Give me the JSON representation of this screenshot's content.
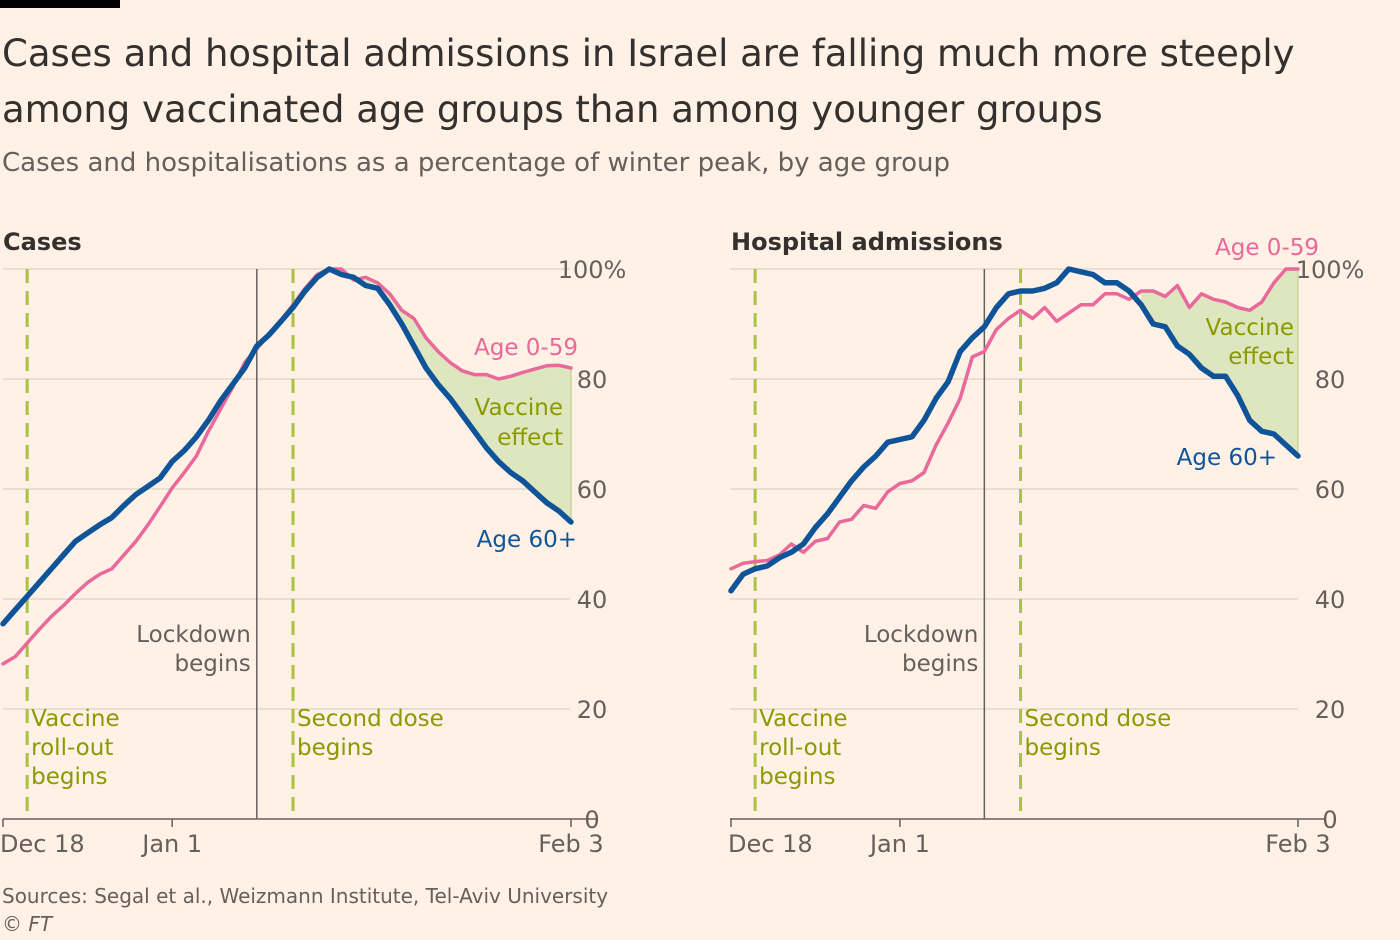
{
  "title": "Cases and hospital admissions in Israel are falling much more steeply among vaccinated age groups than among younger groups",
  "subtitle": "Cases and hospitalisations as a percentage of winter peak, by age group",
  "source": "Sources: Segal et al., Weizmann Institute, Tel-Aviv University",
  "credit": "© FT",
  "colors": {
    "background": "#fff1e5",
    "young": "#e8699a",
    "old": "#0f5499",
    "vaccine_fill": "#dde6be",
    "vaccine_text": "#8a9a00",
    "grid": "#e4d8cc"
  },
  "chart_data": [
    {
      "type": "line",
      "title": "Cases",
      "ylim": [
        0,
        100
      ],
      "y_ticks": [
        "0",
        "20",
        "40",
        "60",
        "80",
        "100%"
      ],
      "x_range_days": [
        0,
        47
      ],
      "x_ticks": [
        {
          "day": 0,
          "label": "Dec 18"
        },
        {
          "day": 14,
          "label": "Jan 1"
        },
        {
          "day": 47,
          "label": "Feb 3"
        }
      ],
      "markers": [
        {
          "day": 2,
          "style": "green-dashed",
          "label": [
            "Vaccine",
            "roll-out",
            "begins"
          ]
        },
        {
          "day": 21,
          "style": "grey-solid",
          "label": [
            "Lockdown",
            "begins"
          ]
        },
        {
          "day": 24,
          "style": "green-dashed",
          "label": [
            "Second dose",
            "begins"
          ]
        }
      ],
      "annotation": [
        "Vaccine",
        "effect"
      ],
      "series": [
        {
          "name": "Age 0-59",
          "values": [
            28.2,
            29.5,
            32.0,
            34.5,
            36.8,
            38.8,
            41.0,
            43.0,
            44.5,
            45.5,
            48.0,
            50.5,
            53.5,
            56.8,
            60.2,
            63.0,
            66.0,
            70.5,
            74.5,
            78.5,
            83.0,
            85.5,
            88.0,
            90.7,
            93.5,
            96.5,
            99.0,
            100.0,
            100.0,
            98.0,
            98.5,
            97.5,
            95.5,
            92.5,
            91.0,
            87.5,
            85.0,
            83.0,
            81.5,
            80.8,
            80.8,
            80.0,
            80.5,
            81.2,
            81.8,
            82.4,
            82.5,
            82.0
          ]
        },
        {
          "name": "Age 60+",
          "values": [
            35.5,
            38.0,
            40.5,
            43.0,
            45.5,
            48.0,
            50.5,
            52.0,
            53.5,
            54.8,
            57.0,
            59.0,
            60.5,
            62.0,
            65.0,
            67.0,
            69.5,
            72.5,
            76.0,
            79.0,
            82.0,
            86.0,
            88.0,
            90.5,
            93.0,
            96.0,
            98.5,
            100.0,
            99.0,
            98.5,
            97.0,
            96.5,
            93.5,
            90.0,
            86.0,
            82.0,
            79.0,
            76.5,
            73.5,
            70.5,
            67.5,
            65.0,
            63.0,
            61.5,
            59.5,
            57.5,
            56.0,
            54.0
          ]
        }
      ]
    },
    {
      "type": "line",
      "title": "Hospital admissions",
      "ylim": [
        0,
        100
      ],
      "y_ticks": [
        "0",
        "20",
        "40",
        "60",
        "80",
        "100%"
      ],
      "x_range_days": [
        0,
        47
      ],
      "x_ticks": [
        {
          "day": 0,
          "label": "Dec 18"
        },
        {
          "day": 14,
          "label": "Jan 1"
        },
        {
          "day": 47,
          "label": "Feb 3"
        }
      ],
      "markers": [
        {
          "day": 2,
          "style": "green-dashed",
          "label": [
            "Vaccine",
            "roll-out",
            "begins"
          ]
        },
        {
          "day": 21,
          "style": "grey-solid",
          "label": [
            "Lockdown",
            "begins"
          ]
        },
        {
          "day": 24,
          "style": "green-dashed",
          "label": [
            "Second dose",
            "begins"
          ]
        }
      ],
      "annotation": [
        "Vaccine",
        "effect"
      ],
      "series": [
        {
          "name": "Age 0-59",
          "values": [
            45.5,
            46.5,
            46.8,
            47.0,
            48.0,
            50.0,
            48.5,
            50.5,
            51.0,
            54.0,
            54.5,
            57.0,
            56.5,
            59.5,
            61.0,
            61.5,
            63.0,
            68.0,
            72.0,
            76.5,
            84.0,
            85.0,
            89.0,
            91.0,
            92.5,
            91.0,
            93.0,
            90.5,
            92.0,
            93.5,
            93.5,
            95.5,
            95.5,
            94.5,
            96.0,
            96.0,
            95.0,
            97.0,
            93.0,
            95.5,
            94.5,
            94.0,
            93.0,
            92.5,
            94.0,
            97.5,
            100.0,
            100.0
          ]
        },
        {
          "name": "Age 60+",
          "values": [
            41.5,
            44.5,
            45.5,
            46.0,
            47.5,
            48.5,
            50.0,
            53.0,
            55.5,
            58.5,
            61.5,
            64.0,
            66.0,
            68.5,
            69.0,
            69.5,
            72.5,
            76.5,
            79.5,
            85.0,
            87.5,
            89.5,
            93.0,
            95.5,
            96.0,
            96.0,
            96.5,
            97.5,
            100.0,
            99.5,
            99.0,
            97.5,
            97.5,
            96.0,
            93.5,
            90.0,
            89.5,
            86.0,
            84.5,
            82.0,
            80.5,
            80.5,
            77.0,
            72.5,
            70.5,
            70.0,
            68.0,
            66.0
          ]
        }
      ]
    }
  ]
}
